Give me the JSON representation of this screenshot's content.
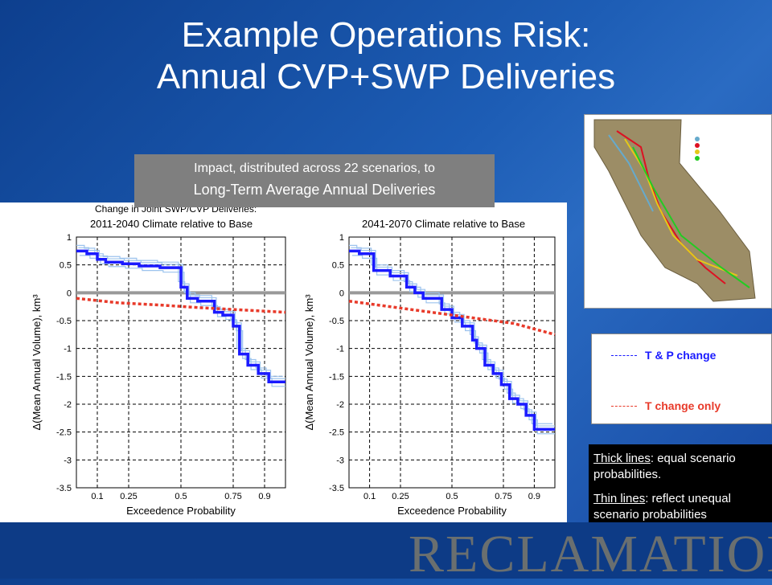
{
  "title": {
    "line1": "Example Operations Risk:",
    "line2": "Annual CVP+SWP Deliveries"
  },
  "impact": {
    "line1": "Impact, distributed across 22 scenarios, to",
    "line2": "Long-Term Average Annual Deliveries"
  },
  "legend": {
    "tp": "T & P change",
    "t": "T change only"
  },
  "note": {
    "p1_under": "Thick lines",
    "p1_rest": ":  equal scenario probabilities.",
    "p2_under": "Thin lines",
    "p2_rest": ": reflect unequal scenario probabilities"
  },
  "logo": "RECLAMATION",
  "colors": {
    "tp": "#1a1aff",
    "t": "#e83a2a",
    "bg": "#1d5db5"
  },
  "chart_data": [
    {
      "type": "line",
      "title_line1": "Change in Joint SWP/CVP Deliveries:",
      "title_line2": "2011-2040 Climate relative to Base",
      "xlabel": "Exceedence Probability",
      "ylabel": "Δ(Mean Annual Volume), km³",
      "xlim": [
        0,
        1
      ],
      "ylim": [
        -3.5,
        1
      ],
      "xticks": [
        0.1,
        0.25,
        0.5,
        0.75,
        0.9
      ],
      "yticks": [
        1,
        0.5,
        0,
        -0.5,
        -1,
        -1.5,
        -2,
        -2.5,
        -3,
        -3.5
      ],
      "series": [
        {
          "name": "T & P change",
          "values_x": [
            0,
            0.05,
            0.05,
            0.1,
            0.1,
            0.14,
            0.14,
            0.22,
            0.22,
            0.3,
            0.3,
            0.4,
            0.4,
            0.5,
            0.5,
            0.53,
            0.53,
            0.58,
            0.58,
            0.66,
            0.66,
            0.7,
            0.7,
            0.75,
            0.75,
            0.78,
            0.78,
            0.82,
            0.82,
            0.87,
            0.87,
            0.92,
            0.92,
            0.95,
            0.95,
            1.0
          ],
          "values_y": [
            0.75,
            0.75,
            0.7,
            0.7,
            0.6,
            0.6,
            0.55,
            0.55,
            0.52,
            0.52,
            0.48,
            0.48,
            0.45,
            0.45,
            0.1,
            0.1,
            -0.1,
            -0.1,
            -0.15,
            -0.15,
            -0.35,
            -0.35,
            -0.4,
            -0.4,
            -0.6,
            -0.6,
            -1.1,
            -1.1,
            -1.3,
            -1.3,
            -1.45,
            -1.45,
            -1.6,
            -1.6,
            -1.6,
            -1.6
          ]
        },
        {
          "name": "T change only",
          "values_x": [
            0,
            0.2,
            0.4,
            0.6,
            0.8,
            1.0
          ],
          "values_y": [
            -0.1,
            -0.18,
            -0.22,
            -0.27,
            -0.31,
            -0.35
          ]
        }
      ]
    },
    {
      "type": "line",
      "title_line1": "",
      "title_line2": "2041-2070 Climate relative to Base",
      "xlabel": "Exceedence Probability",
      "ylabel": "Δ(Mean Annual Volume), km³",
      "xlim": [
        0,
        1
      ],
      "ylim": [
        -3.5,
        1
      ],
      "xticks": [
        0.1,
        0.25,
        0.5,
        0.75,
        0.9
      ],
      "yticks": [
        1,
        0.5,
        0,
        -0.5,
        -1,
        -1.5,
        -2,
        -2.5,
        -3,
        -3.5
      ],
      "series": [
        {
          "name": "T & P change",
          "values_x": [
            0,
            0.05,
            0.05,
            0.12,
            0.12,
            0.2,
            0.2,
            0.28,
            0.28,
            0.32,
            0.32,
            0.36,
            0.36,
            0.45,
            0.45,
            0.5,
            0.5,
            0.55,
            0.55,
            0.6,
            0.6,
            0.62,
            0.62,
            0.66,
            0.66,
            0.7,
            0.7,
            0.74,
            0.74,
            0.78,
            0.78,
            0.82,
            0.82,
            0.86,
            0.86,
            0.9,
            0.9,
            0.95,
            0.95,
            1.0
          ],
          "values_y": [
            0.75,
            0.75,
            0.7,
            0.7,
            0.4,
            0.4,
            0.3,
            0.3,
            0.1,
            0.1,
            0.0,
            0.0,
            -0.1,
            -0.1,
            -0.3,
            -0.3,
            -0.45,
            -0.45,
            -0.6,
            -0.6,
            -0.85,
            -0.85,
            -1.0,
            -1.0,
            -1.3,
            -1.3,
            -1.45,
            -1.45,
            -1.65,
            -1.65,
            -1.9,
            -1.9,
            -2.0,
            -2.0,
            -2.2,
            -2.2,
            -2.45,
            -2.45,
            -2.45,
            -2.45
          ]
        },
        {
          "name": "T change only",
          "values_x": [
            0,
            0.2,
            0.4,
            0.6,
            0.8,
            0.9,
            1.0
          ],
          "values_y": [
            -0.15,
            -0.25,
            -0.35,
            -0.45,
            -0.55,
            -0.65,
            -0.75
          ]
        }
      ]
    }
  ]
}
